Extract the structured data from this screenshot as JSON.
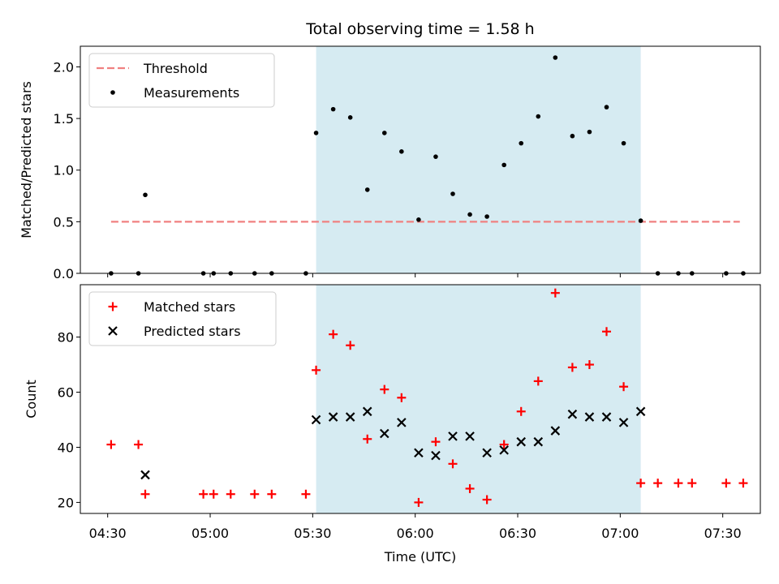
{
  "chart_data": {
    "title": "Total observing time = 1.58 h",
    "xlabel": "Time (UTC)",
    "shared_x": true,
    "x_ticks": [
      "04:30",
      "05:00",
      "05:30",
      "06:00",
      "06:30",
      "07:00",
      "07:30"
    ],
    "x_range": [
      "04:22",
      "07:41"
    ],
    "highlight_span": {
      "start": "05:31",
      "end": "07:06",
      "color": "#add8e6"
    },
    "panels": [
      {
        "type": "scatter",
        "ylabel": "Matched/Predicted stars",
        "ylim": [
          0,
          2.2
        ],
        "y_ticks": [
          "0.0",
          "0.5",
          "1.0",
          "1.5",
          "2.0"
        ],
        "threshold": {
          "name": "Threshold",
          "value": 0.5,
          "x_start": "04:31",
          "x_end": "07:35",
          "color": "#f08080",
          "style": "dashed"
        },
        "series": [
          {
            "name": "Measurements",
            "marker": "dot",
            "color": "#000000",
            "points": [
              [
                "04:31",
                0.0
              ],
              [
                "04:39",
                0.0
              ],
              [
                "04:41",
                0.76
              ],
              [
                "04:58",
                0.0
              ],
              [
                "05:01",
                0.0
              ],
              [
                "05:06",
                0.0
              ],
              [
                "05:13",
                0.0
              ],
              [
                "05:18",
                0.0
              ],
              [
                "05:28",
                0.0
              ],
              [
                "05:31",
                1.36
              ],
              [
                "05:36",
                1.59
              ],
              [
                "05:41",
                1.51
              ],
              [
                "05:46",
                0.81
              ],
              [
                "05:51",
                1.36
              ],
              [
                "05:56",
                1.18
              ],
              [
                "06:01",
                0.52
              ],
              [
                "06:06",
                1.13
              ],
              [
                "06:11",
                0.77
              ],
              [
                "06:16",
                0.57
              ],
              [
                "06:21",
                0.55
              ],
              [
                "06:26",
                1.05
              ],
              [
                "06:31",
                1.26
              ],
              [
                "06:36",
                1.52
              ],
              [
                "06:41",
                2.09
              ],
              [
                "06:46",
                1.33
              ],
              [
                "06:51",
                1.37
              ],
              [
                "06:56",
                1.61
              ],
              [
                "07:01",
                1.26
              ],
              [
                "07:06",
                0.51
              ],
              [
                "07:11",
                0.0
              ],
              [
                "07:17",
                0.0
              ],
              [
                "07:21",
                0.0
              ],
              [
                "07:31",
                0.0
              ],
              [
                "07:36",
                0.0
              ]
            ]
          }
        ],
        "legend": {
          "placement": "upper-left",
          "entries": [
            "Threshold",
            "Measurements"
          ]
        }
      },
      {
        "type": "scatter",
        "ylabel": "Count",
        "ylim": [
          16,
          99
        ],
        "y_ticks": [
          "20",
          "40",
          "60",
          "80"
        ],
        "series": [
          {
            "name": "Matched stars",
            "marker": "plus",
            "color": "#ff0000",
            "points": [
              [
                "04:31",
                41
              ],
              [
                "04:39",
                41
              ],
              [
                "04:41",
                23
              ],
              [
                "04:58",
                23
              ],
              [
                "05:01",
                23
              ],
              [
                "05:06",
                23
              ],
              [
                "05:13",
                23
              ],
              [
                "05:18",
                23
              ],
              [
                "05:28",
                23
              ],
              [
                "05:31",
                68
              ],
              [
                "05:36",
                81
              ],
              [
                "05:41",
                77
              ],
              [
                "05:46",
                43
              ],
              [
                "05:51",
                61
              ],
              [
                "05:56",
                58
              ],
              [
                "06:01",
                20
              ],
              [
                "06:06",
                42
              ],
              [
                "06:11",
                34
              ],
              [
                "06:16",
                25
              ],
              [
                "06:21",
                21
              ],
              [
                "06:26",
                41
              ],
              [
                "06:31",
                53
              ],
              [
                "06:36",
                64
              ],
              [
                "06:41",
                96
              ],
              [
                "06:46",
                69
              ],
              [
                "06:51",
                70
              ],
              [
                "06:56",
                82
              ],
              [
                "07:01",
                62
              ],
              [
                "07:06",
                27
              ],
              [
                "07:11",
                27
              ],
              [
                "07:17",
                27
              ],
              [
                "07:21",
                27
              ],
              [
                "07:31",
                27
              ],
              [
                "07:36",
                27
              ]
            ]
          },
          {
            "name": "Predicted stars",
            "marker": "x",
            "color": "#000000",
            "points": [
              [
                "04:41",
                30
              ],
              [
                "05:31",
                50
              ],
              [
                "05:36",
                51
              ],
              [
                "05:41",
                51
              ],
              [
                "05:46",
                53
              ],
              [
                "05:51",
                45
              ],
              [
                "05:56",
                49
              ],
              [
                "06:01",
                38
              ],
              [
                "06:06",
                37
              ],
              [
                "06:11",
                44
              ],
              [
                "06:16",
                44
              ],
              [
                "06:21",
                38
              ],
              [
                "06:26",
                39
              ],
              [
                "06:31",
                42
              ],
              [
                "06:36",
                42
              ],
              [
                "06:41",
                46
              ],
              [
                "06:46",
                52
              ],
              [
                "06:51",
                51
              ],
              [
                "06:56",
                51
              ],
              [
                "07:01",
                49
              ],
              [
                "07:06",
                53
              ]
            ]
          }
        ],
        "legend": {
          "placement": "upper-left",
          "entries": [
            "Matched stars",
            "Predicted stars"
          ]
        }
      }
    ]
  }
}
